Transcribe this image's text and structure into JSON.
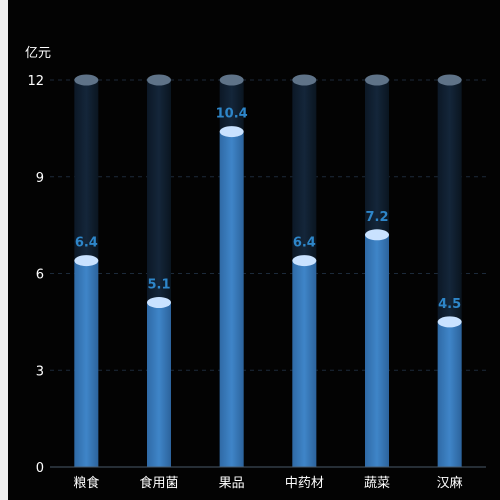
{
  "chart_data": {
    "type": "bar",
    "ylabel": "亿元",
    "categories": [
      "粮食",
      "食用菌",
      "果品",
      "中药材",
      "蔬菜",
      "汉麻"
    ],
    "values": [
      6.4,
      5.1,
      10.4,
      6.4,
      7.2,
      4.5
    ],
    "data_labels": [
      "6.4",
      "5.1",
      "10.4",
      "6.4",
      "7.2",
      "4.5"
    ],
    "ylim": [
      0,
      12
    ],
    "yticks": [
      0,
      3,
      6,
      9,
      12
    ],
    "grid": true,
    "colors": {
      "bar_top": "#3d7fbf",
      "bar_bottom": "#2a5f94",
      "bar_cap": "#c9e2ff",
      "track_top_cap": "#5f7388",
      "label": "#2e86c9",
      "grid": "#1c2a3a",
      "axis": "#4a5a6a"
    }
  }
}
